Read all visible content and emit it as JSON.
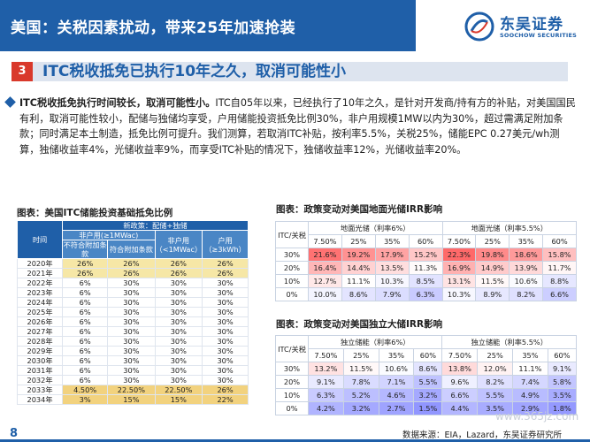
{
  "header": {
    "title": "美国：关税因素扰动，带来25年加速抢装",
    "logo_cn": "东吴证券",
    "logo_en": "SOOCHOW SECURITIES"
  },
  "section": {
    "number": "3",
    "title": "ITC税收抵免已执行10年之久，取消可能性小"
  },
  "paragraph": {
    "bold_lead": "ITC税收抵免执行时间较长，取消可能性小。",
    "body": "ITC自05年以来，已经执行了10年之久，是针对开发商/持有方的补贴，对美国国民有利，取消可能性较小，配储与独储均享受，户用储能投资抵免比例30%，非户用规模1MW以内为30%，超过需满足附加条款；同时满足本土制造，抵免比例可提升。我们测算，若取消ITC补贴，按利率5.5%，关税25%，储能EPC 0.27美元/wh测算，独储收益率4%，光储收益率9%，而享受ITC补贴的情况下，独储收益率12%，光储收益率20%。"
  },
  "table1": {
    "caption": "图表：美国ITC储能投资基础抵免比例",
    "col_time": "时间",
    "group_header": "新政策：配储+独储",
    "sub_nonres_small": "非户用(≥1MWac)",
    "col_no_extra": "不符合附加条款",
    "col_extra": "符合附加条款",
    "col_nonres": "非户用（<1MWac）",
    "col_res": "户用（≥3kWh）",
    "rows": [
      {
        "year": "2020年",
        "a": "26%",
        "b": "26%",
        "c": "26%",
        "d": "26%"
      },
      {
        "year": "2021年",
        "a": "26%",
        "b": "26%",
        "c": "26%",
        "d": "26%"
      },
      {
        "year": "2022年",
        "a": "6%",
        "b": "30%",
        "c": "30%",
        "d": "30%"
      },
      {
        "year": "2023年",
        "a": "6%",
        "b": "30%",
        "c": "30%",
        "d": "30%"
      },
      {
        "year": "2024年",
        "a": "6%",
        "b": "30%",
        "c": "30%",
        "d": "30%"
      },
      {
        "year": "2025年",
        "a": "6%",
        "b": "30%",
        "c": "30%",
        "d": "30%"
      },
      {
        "year": "2026年",
        "a": "6%",
        "b": "30%",
        "c": "30%",
        "d": "30%"
      },
      {
        "year": "2027年",
        "a": "6%",
        "b": "30%",
        "c": "30%",
        "d": "30%"
      },
      {
        "year": "2028年",
        "a": "6%",
        "b": "30%",
        "c": "30%",
        "d": "30%"
      },
      {
        "year": "2029年",
        "a": "6%",
        "b": "30%",
        "c": "30%",
        "d": "30%"
      },
      {
        "year": "2030年",
        "a": "6%",
        "b": "30%",
        "c": "30%",
        "d": "30%"
      },
      {
        "year": "2031年",
        "a": "6%",
        "b": "30%",
        "c": "30%",
        "d": "30%"
      },
      {
        "year": "2032年",
        "a": "6%",
        "b": "30%",
        "c": "30%",
        "d": "30%"
      },
      {
        "year": "2033年",
        "a": "4.50%",
        "b": "22.50%",
        "c": "22.50%",
        "d": "26%"
      },
      {
        "year": "2034年",
        "a": "3%",
        "b": "15%",
        "c": "15%",
        "d": "22%"
      }
    ]
  },
  "table2": {
    "caption": "图表：政策变动对美国地面光储IRR影响",
    "corner": "ITC/关税",
    "group_left": "地面光储（利率6%）",
    "group_right": "地面光储（利率5.5%）",
    "tariffs": [
      "7.50%",
      "25%",
      "35%",
      "60%"
    ],
    "row_labels": [
      "30%",
      "20%",
      "10%",
      "0%"
    ],
    "left": [
      [
        "21.6%",
        "19.2%",
        "17.9%",
        "15.2%"
      ],
      [
        "16.4%",
        "14.4%",
        "13.5%",
        "11.3%"
      ],
      [
        "12.7%",
        "11.1%",
        "10.3%",
        "8.5%"
      ],
      [
        "10.0%",
        "8.6%",
        "7.9%",
        "6.3%"
      ]
    ],
    "right": [
      [
        "22.3%",
        "19.8%",
        "18.6%",
        "15.8%"
      ],
      [
        "16.9%",
        "14.9%",
        "13.9%",
        "11.7%"
      ],
      [
        "13.1%",
        "11.5%",
        "10.6%",
        "8.8%"
      ],
      [
        "10.3%",
        "8.9%",
        "8.2%",
        "6.6%"
      ]
    ]
  },
  "table3": {
    "caption": "图表：政策变动对美国独立大储IRR影响",
    "corner": "ITC/关税",
    "group_left": "独立储能（利率6%）",
    "group_right": "独立储能（利率5.5%）",
    "tariffs": [
      "7.50%",
      "25%",
      "35%",
      "60%"
    ],
    "row_labels": [
      "30%",
      "20%",
      "10%",
      "0%"
    ],
    "left": [
      [
        "13.2%",
        "11.5%",
        "10.6%",
        "8.6%"
      ],
      [
        "9.1%",
        "7.8%",
        "7.1%",
        "5.5%"
      ],
      [
        "6.3%",
        "5.2%",
        "4.6%",
        "3.2%"
      ],
      [
        "4.2%",
        "3.2%",
        "2.7%",
        "1.5%"
      ]
    ],
    "right": [
      [
        "13.8%",
        "12.0%",
        "11.1%",
        "9.1%"
      ],
      [
        "9.6%",
        "8.2%",
        "7.4%",
        "5.8%"
      ],
      [
        "6.6%",
        "5.5%",
        "4.9%",
        "3.5%"
      ],
      [
        "4.4%",
        "3.5%",
        "2.9%",
        "1.8%"
      ]
    ]
  },
  "footer": {
    "page": "8",
    "source": "数据来源：EIA，Lazard，东吴证券研究所",
    "watermark": "www.365jz.com"
  }
}
